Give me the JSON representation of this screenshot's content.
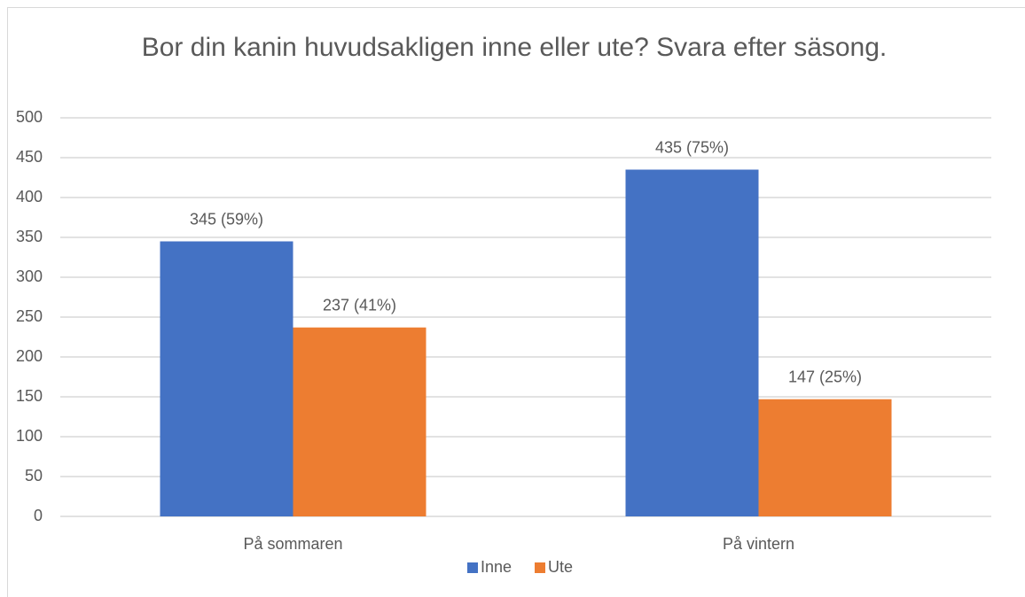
{
  "chart_data": {
    "type": "bar",
    "title": "Bor din kanin huvudsakligen inne eller ute? Svara efter säsong.",
    "categories": [
      "På sommaren",
      "På vintern"
    ],
    "series": [
      {
        "name": "Inne",
        "color": "#4472c4",
        "values": [
          345,
          435
        ],
        "value_labels": [
          "345 (59%)",
          "435 (75%)"
        ]
      },
      {
        "name": "Ute",
        "color": "#ed7d31",
        "values": [
          237,
          147
        ],
        "value_labels": [
          "237 (41%)",
          "147 (25%)"
        ]
      }
    ],
    "ylim": [
      0,
      500
    ],
    "yticks": [
      0,
      50,
      100,
      150,
      200,
      250,
      300,
      350,
      400,
      450,
      500
    ],
    "grid": true,
    "legend": "bottom"
  }
}
